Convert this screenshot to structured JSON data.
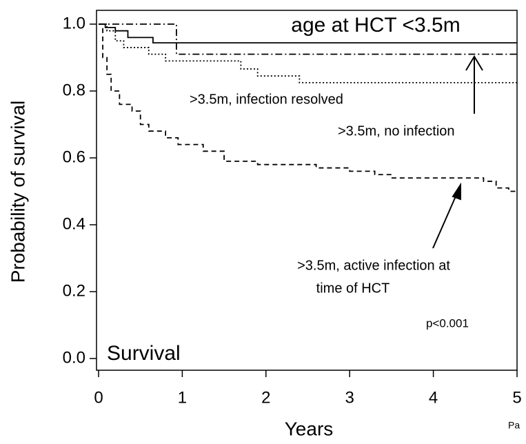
{
  "chart_data": {
    "type": "step",
    "xlabel": "Years",
    "ylabel": "Probability of survival",
    "xlim": [
      0,
      5
    ],
    "ylim": [
      0,
      1
    ],
    "xticks": [
      0,
      1,
      2,
      3,
      4,
      5
    ],
    "yticks": [
      {
        "value": 0,
        "label": "0.0"
      },
      0.2,
      0.4,
      0.6,
      0.8,
      {
        "value": 1,
        "label": "1.0"
      }
    ],
    "series": [
      {
        "color": "#000000",
        "x": [
          0,
          0.08,
          0.2,
          0.35,
          0.65,
          5
        ],
        "values": [
          1,
          0.99,
          0.98,
          0.96,
          0.944,
          0.944
        ]
      },
      {
        "color": "#000000",
        "x": [
          0,
          0.93,
          5
        ],
        "values": [
          1,
          0.91,
          0.91
        ]
      },
      {
        "color": "#000000",
        "x": [
          0,
          0.1,
          0.2,
          0.3,
          0.6,
          0.8,
          1.7,
          1.9,
          2.4,
          5
        ],
        "values": [
          1,
          0.98,
          0.95,
          0.93,
          0.91,
          0.89,
          0.866,
          0.845,
          0.825,
          0.825
        ]
      },
      {
        "color": "#000000",
        "x": [
          0,
          0.05,
          0.1,
          0.15,
          0.25,
          0.4,
          0.5,
          0.6,
          0.8,
          0.95,
          1.25,
          1.5,
          1.9,
          2.6,
          3.0,
          3.3,
          3.5,
          4.6,
          4.75,
          4.9,
          5
        ],
        "values": [
          1,
          0.9,
          0.85,
          0.8,
          0.76,
          0.74,
          0.7,
          0.68,
          0.66,
          0.64,
          0.62,
          0.59,
          0.58,
          0.57,
          0.56,
          0.55,
          0.54,
          0.53,
          0.51,
          0.5,
          0.5
        ]
      }
    ],
    "annotations": [
      "age at HCT <3.5m",
      ">3.5m, infection resolved",
      ">3.5m, no infection",
      ">3.5m, active infection at",
      "time of HCT",
      "p<0.001",
      "Survival",
      "Pa"
    ]
  }
}
